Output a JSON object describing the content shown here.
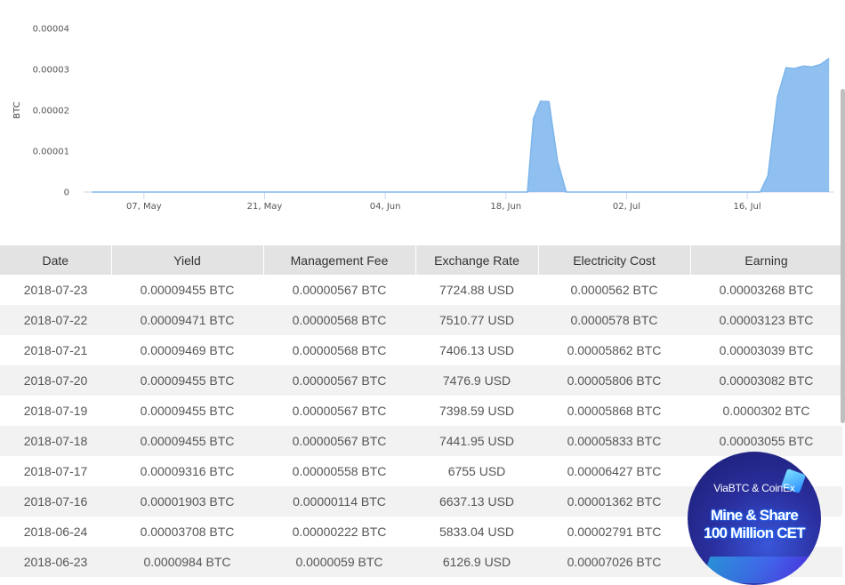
{
  "chart_data": {
    "type": "area",
    "ylabel": "BTC",
    "ylim": [
      0,
      4e-05
    ],
    "y_ticks": [
      "0",
      "0.00001",
      "0.00002",
      "0.00003",
      "0.00004"
    ],
    "x_ticks": [
      {
        "label": "07, May",
        "day": 7
      },
      {
        "label": "21, May",
        "day": 21
      },
      {
        "label": "04, Jun",
        "day": 35
      },
      {
        "label": "18, Jun",
        "day": 49
      },
      {
        "label": "02, Jul",
        "day": 63
      },
      {
        "label": "16, Jul",
        "day": 77
      }
    ],
    "xlim": [
      0,
      87
    ],
    "series": [
      {
        "color": "#7cb5ec",
        "points": [
          [
            1,
            0
          ],
          [
            51.5,
            0
          ],
          [
            52.2,
            1.8e-05
          ],
          [
            53,
            2.22e-05
          ],
          [
            54,
            2.21e-05
          ],
          [
            55,
            7.5e-06
          ],
          [
            56,
            0
          ],
          [
            78.5,
            0
          ],
          [
            79.4,
            4e-06
          ],
          [
            80.5,
            2.32e-05
          ],
          [
            81.5,
            3.04e-05
          ],
          [
            82.5,
            3.02e-05
          ],
          [
            83.5,
            3.08e-05
          ],
          [
            84.5,
            3.06e-05
          ],
          [
            85.5,
            3.12e-05
          ],
          [
            86.5,
            3.27e-05
          ]
        ]
      }
    ]
  },
  "table": {
    "headers": [
      "Date",
      "Yield",
      "Management Fee",
      "Exchange Rate",
      "Electricity Cost",
      "Earning"
    ],
    "rows": [
      [
        "2018-07-23",
        "0.00009455 BTC",
        "0.00000567 BTC",
        "7724.88 USD",
        "0.0000562 BTC",
        "0.00003268 BTC"
      ],
      [
        "2018-07-22",
        "0.00009471 BTC",
        "0.00000568 BTC",
        "7510.77 USD",
        "0.0000578 BTC",
        "0.00003123 BTC"
      ],
      [
        "2018-07-21",
        "0.00009469 BTC",
        "0.00000568 BTC",
        "7406.13 USD",
        "0.00005862 BTC",
        "0.00003039 BTC"
      ],
      [
        "2018-07-20",
        "0.00009455 BTC",
        "0.00000567 BTC",
        "7476.9 USD",
        "0.00005806 BTC",
        "0.00003082 BTC"
      ],
      [
        "2018-07-19",
        "0.00009455 BTC",
        "0.00000567 BTC",
        "7398.59 USD",
        "0.00005868 BTC",
        "0.0000302 BTC"
      ],
      [
        "2018-07-18",
        "0.00009455 BTC",
        "0.00000567 BTC",
        "7441.95 USD",
        "0.00005833 BTC",
        "0.00003055 BTC"
      ],
      [
        "2018-07-17",
        "0.00009316 BTC",
        "0.00000558 BTC",
        "6755 USD",
        "0.00006427 BTC",
        ""
      ],
      [
        "2018-07-16",
        "0.00001903 BTC",
        "0.00000114 BTC",
        "6637.13 USD",
        "0.00001362 BTC",
        ""
      ],
      [
        "2018-06-24",
        "0.00003708 BTC",
        "0.00000222 BTC",
        "5833.04 USD",
        "0.00002791 BTC",
        ""
      ],
      [
        "2018-06-23",
        "0.0000984 BTC",
        "0.0000059 BTC",
        "6126.9 USD",
        "0.00007026 BTC",
        ""
      ]
    ]
  },
  "ad": {
    "brand": "ViaBTC & CoinEx",
    "line1": "Mine & Share",
    "line2": "100 Million CET"
  },
  "colors": {
    "series": "#7cb5ec",
    "header_bg": "#e3e3e3",
    "stripe_bg": "#f2f2f2"
  }
}
